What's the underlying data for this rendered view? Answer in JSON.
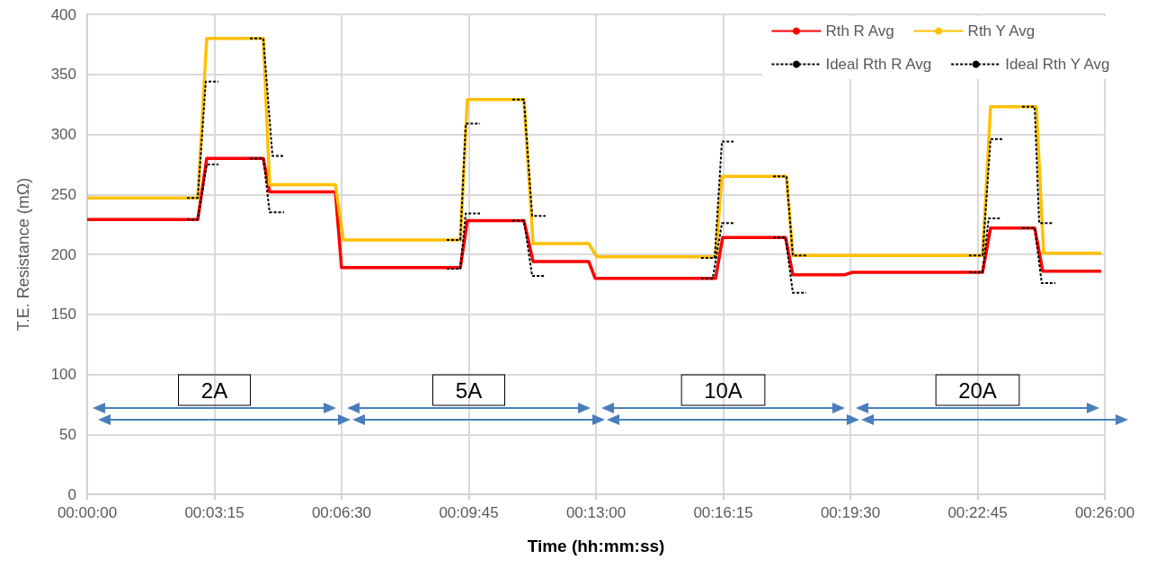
{
  "chart_data": {
    "type": "line",
    "xlabel": "Time (hh:mm:ss)",
    "ylabel": "T.E. Resistance (mΩ)",
    "xlim": [
      0,
      0.433333
    ],
    "xticks": [
      {
        "value": 0,
        "label": "00:00:00"
      },
      {
        "value": 0.054167,
        "label": "00:03:15"
      },
      {
        "value": 0.108333,
        "label": "00:06:30"
      },
      {
        "value": 0.1625,
        "label": "00:09:45"
      },
      {
        "value": 0.216667,
        "label": "00:13:00"
      },
      {
        "value": 0.270833,
        "label": "00:16:15"
      },
      {
        "value": 0.325,
        "label": "00:19:30"
      },
      {
        "value": 0.379167,
        "label": "00:22:45"
      },
      {
        "value": 0.433333,
        "label": "00:26:00"
      }
    ],
    "ylim": [
      0,
      400
    ],
    "yticks": [
      0,
      50,
      100,
      150,
      200,
      250,
      300,
      350,
      400
    ],
    "grid": true,
    "legend": "top right",
    "marker": "none",
    "series": [
      {
        "name": "Rth R Avg",
        "color": "#ff0000",
        "line_style": "solid",
        "x": [
          0,
          0.0471,
          0.0509,
          0.075,
          0.0777,
          0.1057,
          0.1083,
          0.1589,
          0.1619,
          0.186,
          0.1899,
          0.2136,
          0.2163,
          0.2676,
          0.2706,
          0.2974,
          0.3005,
          0.3227,
          0.3258,
          0.3813,
          0.3847,
          0.4035,
          0.4069,
          0.4318
        ],
        "values": [
          229,
          229,
          280,
          280,
          252,
          252,
          189,
          189,
          228,
          228,
          194,
          194,
          180,
          180,
          214,
          214,
          183,
          183,
          185,
          185,
          222,
          222,
          186,
          186
        ]
      },
      {
        "name": "Rth Y Avg",
        "color": "#ffc000",
        "line_style": "solid",
        "x": [
          0,
          0.0471,
          0.0509,
          0.075,
          0.0777,
          0.1057,
          0.1091,
          0.1589,
          0.1619,
          0.186,
          0.1899,
          0.2136,
          0.217,
          0.2676,
          0.2703,
          0.2978,
          0.3005,
          0.3813,
          0.3847,
          0.4042,
          0.4073,
          0.4318
        ],
        "values": [
          247,
          247,
          380,
          380,
          258,
          258,
          212,
          212,
          329,
          329,
          209,
          209,
          198,
          198,
          265,
          265,
          199,
          199,
          323,
          323,
          201,
          201
        ]
      },
      {
        "name": "Ideal Rth R Avg",
        "color": "#000000",
        "line_style": "dashed",
        "x": [
          0.0425,
          0.0471,
          0.0509,
          0.0559,
          0.0626,
          0.0693,
          0.075,
          0.0777,
          0.0838,
          0.09,
          0.1531,
          0.1589,
          0.1612,
          0.1673,
          0.175,
          0.1811,
          0.186,
          0.1895,
          0.1952,
          0.2,
          0.2614,
          0.2664,
          0.2703,
          0.276,
          0.284,
          0.2921,
          0.2974,
          0.3005,
          0.3062,
          0.34,
          0.3755,
          0.3813,
          0.3839,
          0.3889,
          0.391,
          0.3981,
          0.4035,
          0.4065,
          0.4123
        ],
        "values": [
          229,
          229,
          275,
          275,
          null,
          280,
          280,
          235,
          235,
          null,
          188,
          188,
          234,
          234,
          null,
          228,
          228,
          182,
          182,
          null,
          180,
          180,
          226,
          226,
          null,
          214,
          214,
          168,
          168,
          null,
          185,
          185,
          230,
          230,
          null,
          222,
          222,
          176,
          176
        ]
      },
      {
        "name": "Ideal Rth Y Avg",
        "color": "#000000",
        "line_style": "dashed",
        "x": [
          0.0425,
          0.0471,
          0.0505,
          0.0559,
          0.0626,
          0.0693,
          0.075,
          0.0789,
          0.0838,
          0.09,
          0.1531,
          0.1589,
          0.1612,
          0.1673,
          0.175,
          0.1811,
          0.186,
          0.1895,
          0.1952,
          0.2,
          0.2614,
          0.2672,
          0.2703,
          0.276,
          0.284,
          0.2921,
          0.2978,
          0.3005,
          0.3062,
          0.34,
          0.3755,
          0.3813,
          0.3847,
          0.3897,
          0.391,
          0.3981,
          0.4035,
          0.4054,
          0.4115
        ],
        "values": [
          247,
          247,
          344,
          344,
          null,
          380,
          380,
          282,
          282,
          null,
          212,
          212,
          309,
          309,
          null,
          329,
          329,
          232,
          232,
          null,
          197,
          197,
          294,
          294,
          null,
          265,
          265,
          199,
          199,
          null,
          199,
          199,
          296,
          296,
          null,
          323,
          323,
          226,
          226
        ]
      }
    ],
    "annotations": [
      "2A",
      "5A",
      "10A",
      "20A"
    ]
  }
}
